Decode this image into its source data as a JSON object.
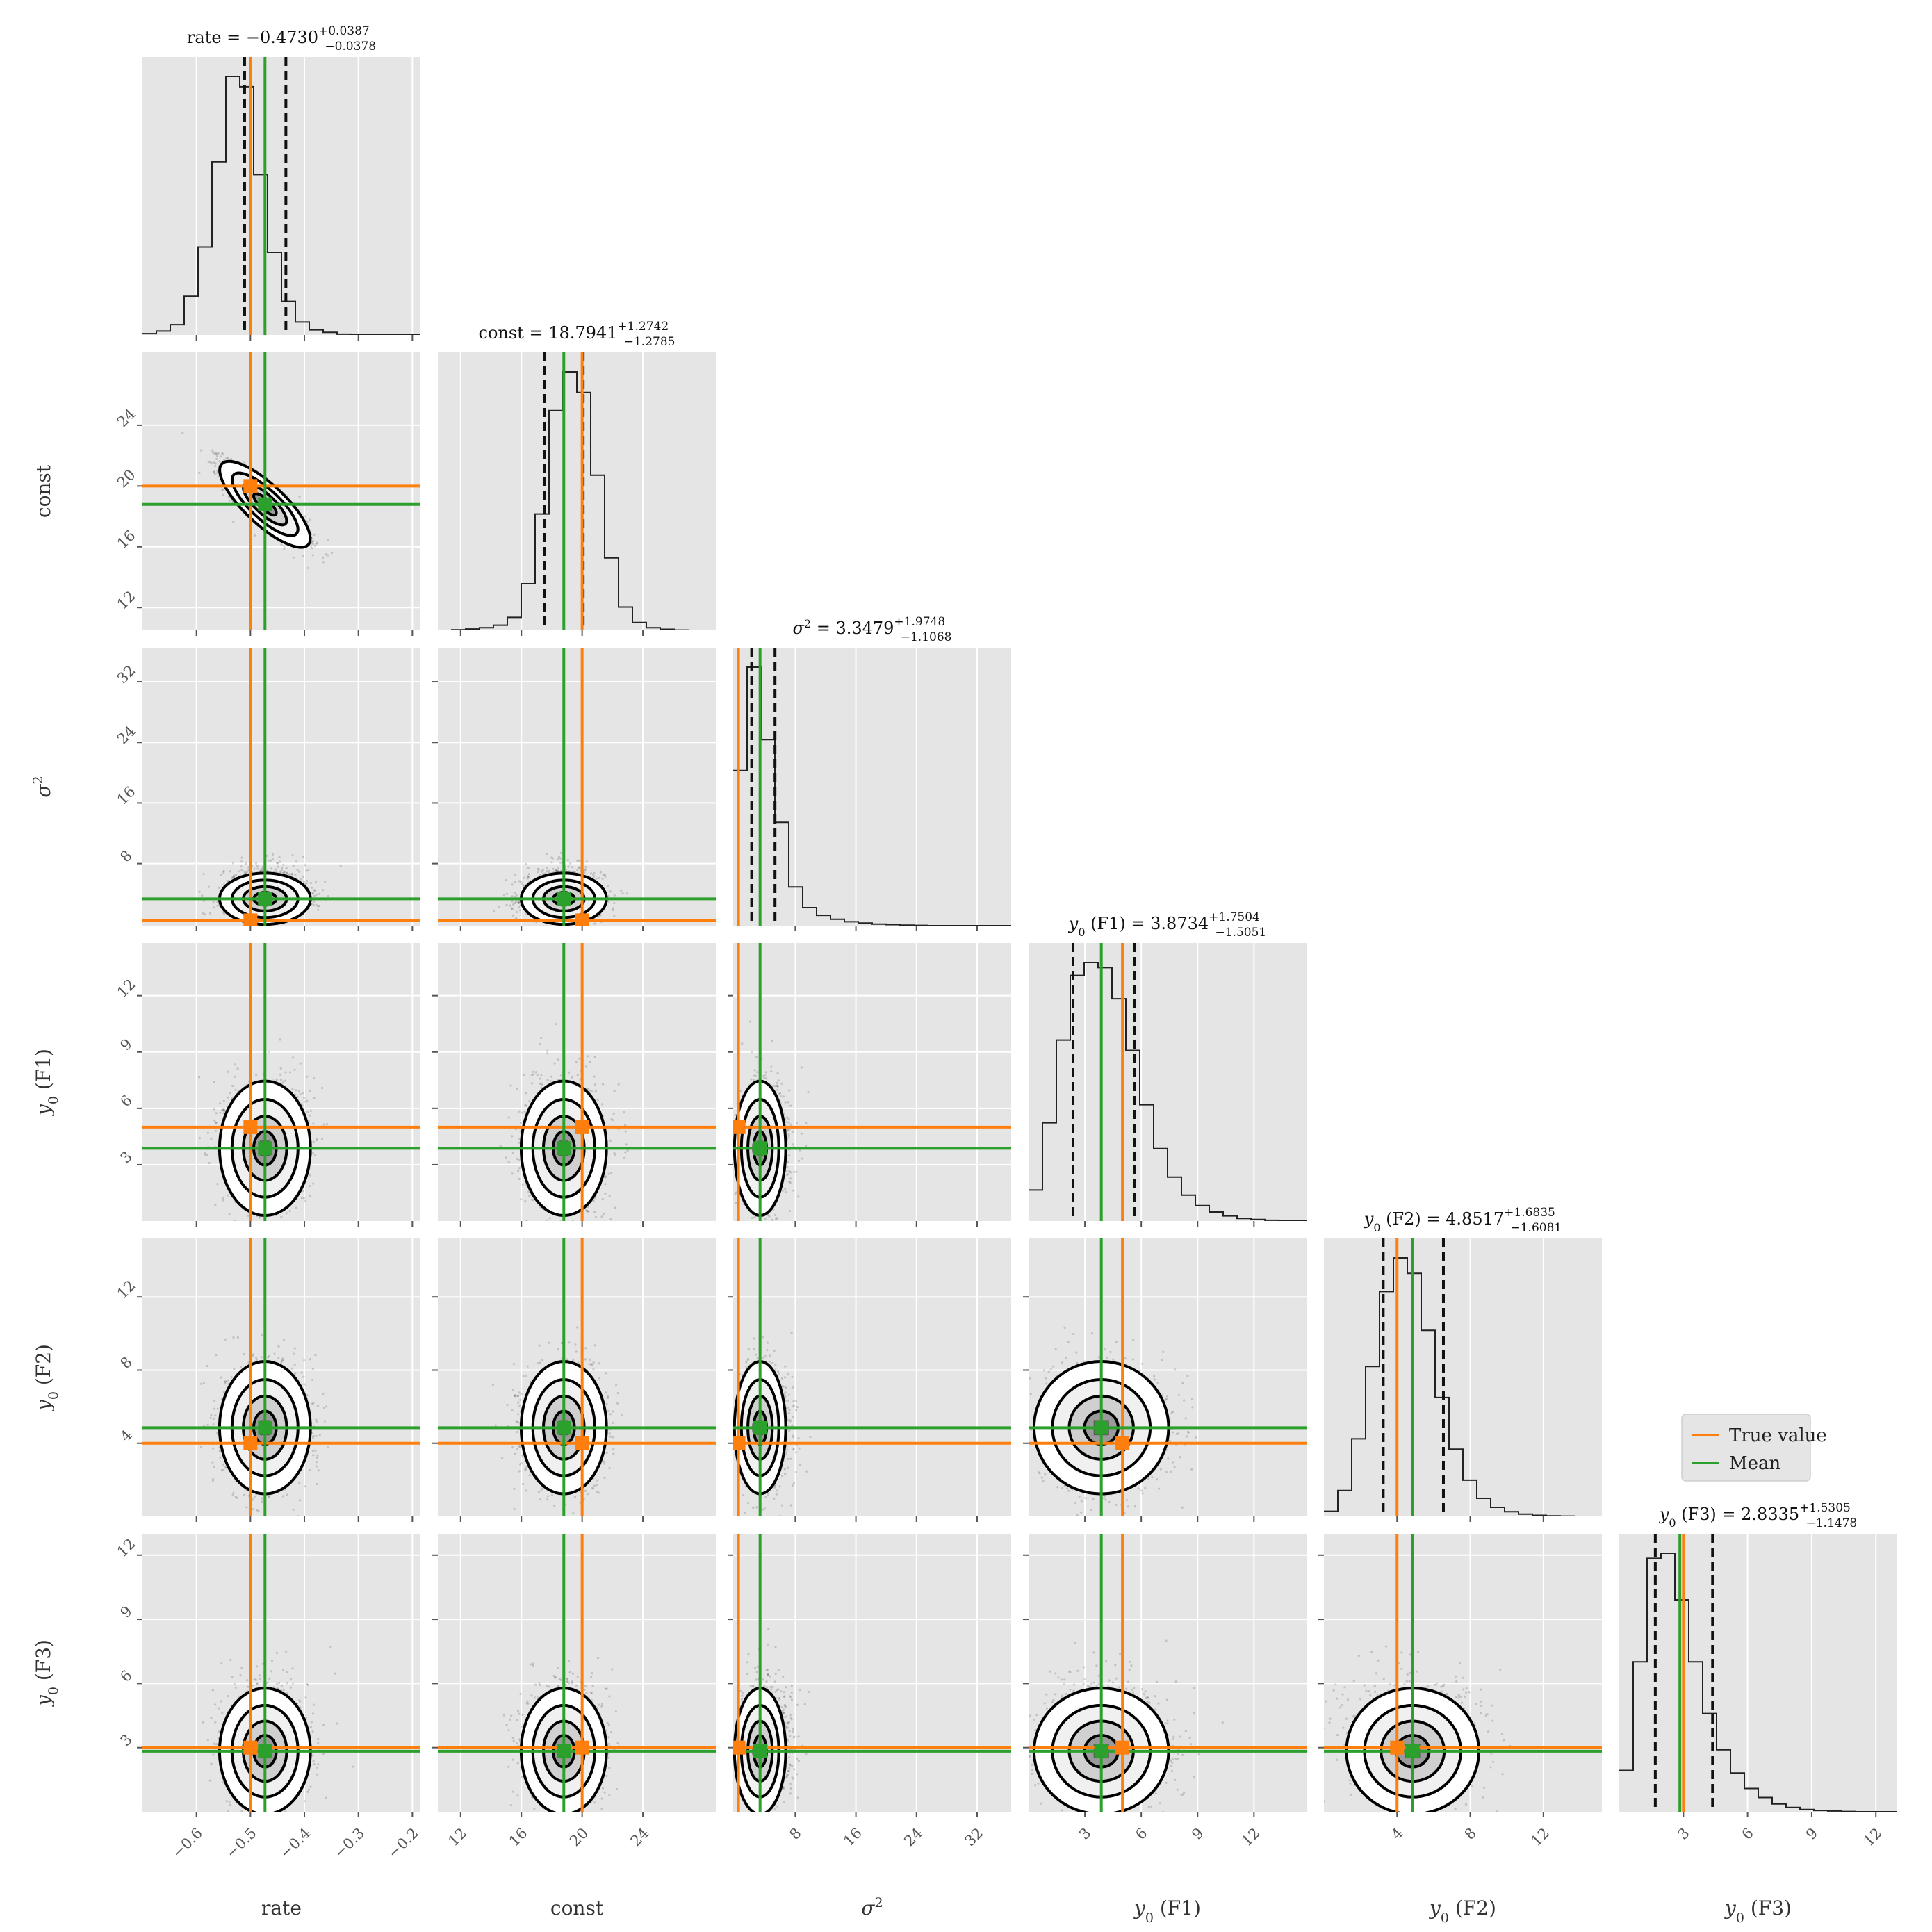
{
  "chart_data": {
    "type": "corner",
    "params": [
      {
        "id": "rate",
        "label": "rate",
        "sub": "",
        "suffix": "",
        "lim": [
          -0.7,
          -0.185
        ],
        "ticks": [
          -0.6,
          -0.5,
          -0.4,
          -0.3,
          -0.2
        ],
        "tick_labels": [
          "−0.6",
          "−0.5",
          "−0.4",
          "−0.3",
          "−0.2"
        ],
        "mean": -0.473,
        "truth": -0.5
      },
      {
        "id": "const",
        "label": "const",
        "sub": "",
        "suffix": "",
        "lim": [
          10.5,
          28.8
        ],
        "ticks": [
          12,
          16,
          20,
          24
        ],
        "tick_labels": [
          "12",
          "16",
          "20",
          "24"
        ],
        "mean": 18.7941,
        "truth": 20
      },
      {
        "id": "sigma2",
        "label": "σ",
        "sub": "",
        "sup": "2",
        "suffix": "",
        "lim": [
          -0.2,
          36.5
        ],
        "ticks": [
          8,
          16,
          24,
          32
        ],
        "tick_labels": [
          "8",
          "16",
          "24",
          "32"
        ],
        "mean": 3.3479,
        "truth": 0.5
      },
      {
        "id": "y0_f1",
        "label": "y",
        "sub": "0",
        "suffix": "(F1)",
        "lim": [
          0.0,
          14.8
        ],
        "ticks": [
          3,
          6,
          9,
          12
        ],
        "tick_labels": [
          "3",
          "6",
          "9",
          "12"
        ],
        "mean": 3.8734,
        "truth": 5
      },
      {
        "id": "y0_f2",
        "label": "y",
        "sub": "0",
        "suffix": "(F2)",
        "lim": [
          0.0,
          15.2
        ],
        "ticks": [
          4,
          8,
          12
        ],
        "tick_labels": [
          "4",
          "8",
          "12"
        ],
        "mean": 4.8517,
        "truth": 4
      },
      {
        "id": "y0_f3",
        "label": "y",
        "sub": "0",
        "suffix": "(F3)",
        "lim": [
          0.0,
          13.0
        ],
        "ticks": [
          3,
          6,
          9,
          12
        ],
        "tick_labels": [
          "3",
          "6",
          "9",
          "12"
        ],
        "mean": 2.8335,
        "truth": 3
      }
    ],
    "titles": [
      {
        "param": "rate",
        "prefix": "rate = ",
        "value": "−0.4730",
        "plus": "+0.0387",
        "minus": "−0.0378"
      },
      {
        "param": "const",
        "prefix": "const = ",
        "value": "18.7941",
        "plus": "+1.2742",
        "minus": "−1.2785"
      },
      {
        "param": "sigma2",
        "prefix": "σ",
        "prefix_sup": "2",
        "prefix_tail": " = ",
        "value": "3.3479",
        "plus": "+1.9748",
        "minus": "−1.1068"
      },
      {
        "param": "y0_f1",
        "prefix": "y",
        "prefix_sub": "0",
        "prefix_tail": " (F1) = ",
        "value": "3.8734",
        "plus": "+1.7504",
        "minus": "−1.5051"
      },
      {
        "param": "y0_f2",
        "prefix": "y",
        "prefix_sub": "0",
        "prefix_tail": " (F2) = ",
        "value": "4.8517",
        "plus": "+1.6835",
        "minus": "−1.6081"
      },
      {
        "param": "y0_f3",
        "prefix": "y",
        "prefix_sub": "0",
        "prefix_tail": " (F3) = ",
        "value": "2.8335",
        "plus": "+1.5305",
        "minus": "−1.1478"
      }
    ],
    "quantiles": [
      [
        -0.5108,
        -0.4343
      ],
      [
        17.5156,
        20.0683
      ],
      [
        2.2411,
        5.3227
      ],
      [
        2.3683,
        5.6238
      ],
      [
        3.2436,
        6.5352
      ],
      [
        1.6857,
        4.364
      ]
    ],
    "histograms": [
      {
        "edges_lim": [
          -0.7,
          -0.185
        ],
        "counts": [
          0.005,
          0.015,
          0.04,
          0.15,
          0.34,
          0.67,
          1.0,
          0.96,
          0.62,
          0.32,
          0.13,
          0.05,
          0.02,
          0.01,
          0.003,
          0.0,
          0.0,
          0.0,
          0.0,
          0.0
        ]
      },
      {
        "edges_lim": [
          10.5,
          28.8
        ],
        "counts": [
          0.0,
          0.002,
          0.005,
          0.01,
          0.02,
          0.05,
          0.18,
          0.45,
          0.85,
          1.0,
          0.92,
          0.6,
          0.28,
          0.09,
          0.03,
          0.01,
          0.004,
          0.001,
          0.0,
          0.0
        ]
      },
      {
        "edges_lim": [
          -0.2,
          36.5
        ],
        "counts": [
          0.6,
          1.0,
          0.72,
          0.4,
          0.15,
          0.07,
          0.04,
          0.025,
          0.015,
          0.01,
          0.006,
          0.004,
          0.002,
          0.001,
          0.0,
          0.0,
          0.0,
          0.0,
          0.0,
          0.0
        ]
      },
      {
        "edges_lim": [
          0.0,
          14.8
        ],
        "counts": [
          0.12,
          0.38,
          0.7,
          0.95,
          1.0,
          0.98,
          0.86,
          0.66,
          0.45,
          0.28,
          0.17,
          0.1,
          0.06,
          0.035,
          0.02,
          0.01,
          0.006,
          0.003,
          0.001,
          0.0
        ]
      },
      {
        "edges_lim": [
          0.0,
          15.2
        ],
        "counts": [
          0.02,
          0.1,
          0.3,
          0.58,
          0.87,
          1.0,
          0.94,
          0.72,
          0.46,
          0.26,
          0.14,
          0.07,
          0.035,
          0.018,
          0.009,
          0.004,
          0.002,
          0.001,
          0.0,
          0.0
        ]
      },
      {
        "edges_lim": [
          0.0,
          13.0
        ],
        "counts": [
          0.16,
          0.58,
          0.98,
          1.0,
          0.82,
          0.58,
          0.38,
          0.24,
          0.15,
          0.09,
          0.055,
          0.03,
          0.017,
          0.009,
          0.005,
          0.003,
          0.001,
          0.0,
          0.0,
          0.0
        ]
      }
    ],
    "correlation_rate_const": -0.85,
    "legend": {
      "entries": [
        {
          "label": "True value",
          "color": "#ff7f0e"
        },
        {
          "label": "Mean",
          "color": "#2ca02c"
        }
      ],
      "placement": "right of y0 (F3) title"
    },
    "grid": true,
    "colors": {
      "truth": "#ff7f0e",
      "mean": "#2ca02c",
      "quantile": "#111111",
      "panel_bg": "#e5e5e5",
      "hist": "#222222",
      "points": "#222222"
    }
  }
}
